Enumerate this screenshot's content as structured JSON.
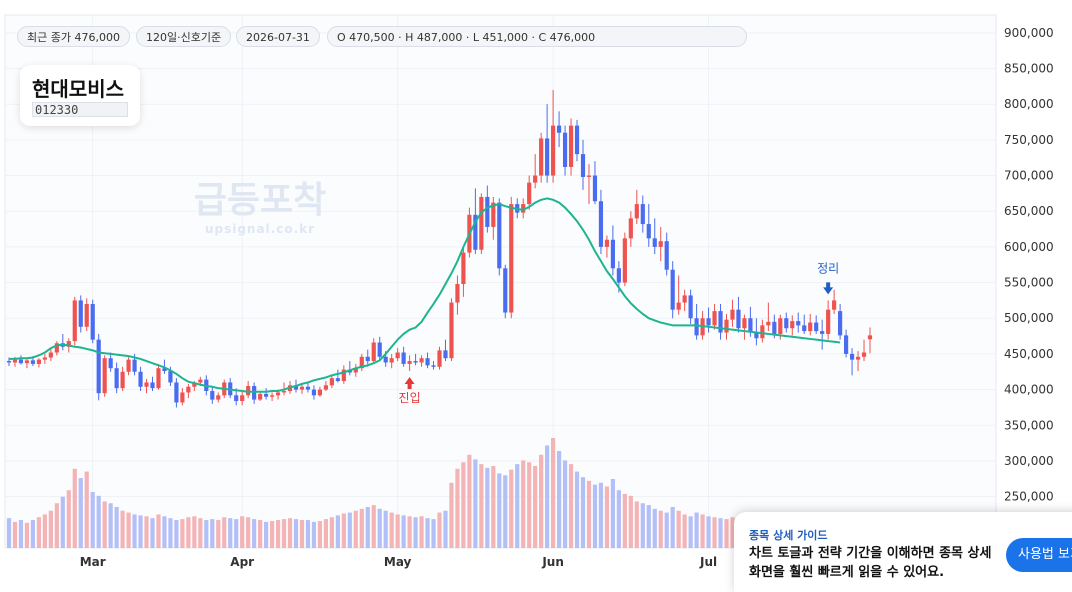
{
  "header": {
    "last_close": "최근 종가 476,000",
    "period": "120일·신호기준",
    "date": "2026-07-31",
    "ohlc": "O 470,500 · H 487,000 · L 451,000 · C 476,000"
  },
  "stock": {
    "name": "현대모비스",
    "code": "012330"
  },
  "watermark": {
    "title": "급등포착",
    "url": "upsignal.co.kr"
  },
  "signals": {
    "entry": "진입",
    "exit": "정리"
  },
  "guide": {
    "title": "종목 상세 가이드",
    "desc": "차트 토글과 전략 기간을 이해하면 종목 상세 화면을 훨씬 빠르게 읽을 수 있어요.",
    "button": "사용법 보기"
  },
  "colors": {
    "up": "#ef5350",
    "down": "#4a6cf0",
    "ma": "#1db58f",
    "vol_up": "#f4b3b5",
    "vol_down": "#b3bff7",
    "entry": "#e53935",
    "exit": "#1f5fbf"
  },
  "chart_data": {
    "type": "candlestick",
    "y_ticks": [
      "900,000",
      "850,000",
      "800,000",
      "750,000",
      "700,000",
      "650,000",
      "600,000",
      "550,000",
      "500,000",
      "450,000",
      "400,000",
      "350,000",
      "300,000",
      "250,000"
    ],
    "ylim": [
      178000,
      925000
    ],
    "x_labels": [
      {
        "label": "Mar",
        "idx": 14
      },
      {
        "label": "Apr",
        "idx": 39
      },
      {
        "label": "May",
        "idx": 65
      },
      {
        "label": "Jun",
        "idx": 91
      },
      {
        "label": "Jul",
        "idx": 117
      }
    ],
    "entry_idx": 67,
    "exit_idx": 137,
    "candles": [
      [
        440000,
        445000,
        433000,
        438000,
        32
      ],
      [
        438000,
        446000,
        432000,
        442000,
        28
      ],
      [
        442000,
        448000,
        435000,
        437000,
        30
      ],
      [
        437000,
        444000,
        430000,
        441000,
        27
      ],
      [
        441000,
        447000,
        433000,
        436000,
        30
      ],
      [
        436000,
        444000,
        431000,
        442000,
        33
      ],
      [
        442000,
        450000,
        436000,
        445000,
        36
      ],
      [
        445000,
        458000,
        440000,
        452000,
        40
      ],
      [
        452000,
        468000,
        448000,
        465000,
        48
      ],
      [
        465000,
        478000,
        455000,
        460000,
        55
      ],
      [
        460000,
        472000,
        452000,
        468000,
        62
      ],
      [
        468000,
        530000,
        462000,
        525000,
        85
      ],
      [
        525000,
        532000,
        480000,
        488000,
        75
      ],
      [
        488000,
        528000,
        482000,
        520000,
        82
      ],
      [
        520000,
        526000,
        465000,
        470000,
        60
      ],
      [
        470000,
        478000,
        385000,
        395000,
        56
      ],
      [
        395000,
        448000,
        390000,
        444000,
        50
      ],
      [
        444000,
        452000,
        425000,
        430000,
        48
      ],
      [
        430000,
        438000,
        395000,
        402000,
        44
      ],
      [
        402000,
        432000,
        398000,
        425000,
        40
      ],
      [
        425000,
        448000,
        420000,
        442000,
        38
      ],
      [
        442000,
        450000,
        420000,
        425000,
        36
      ],
      [
        425000,
        432000,
        398000,
        404000,
        35
      ],
      [
        404000,
        415000,
        395000,
        410000,
        34
      ],
      [
        410000,
        418000,
        398000,
        402000,
        32
      ],
      [
        402000,
        436000,
        400000,
        430000,
        36
      ],
      [
        430000,
        442000,
        422000,
        426000,
        34
      ],
      [
        426000,
        432000,
        405000,
        410000,
        32
      ],
      [
        410000,
        416000,
        375000,
        382000,
        30
      ],
      [
        382000,
        402000,
        378000,
        396000,
        31
      ],
      [
        396000,
        408000,
        388000,
        404000,
        33
      ],
      [
        404000,
        412000,
        398000,
        410000,
        34
      ],
      [
        410000,
        418000,
        405000,
        414000,
        32
      ],
      [
        414000,
        420000,
        392000,
        398000,
        30
      ],
      [
        398000,
        404000,
        380000,
        386000,
        31
      ],
      [
        386000,
        396000,
        382000,
        392000,
        30
      ],
      [
        392000,
        414000,
        388000,
        410000,
        33
      ],
      [
        410000,
        416000,
        388000,
        392000,
        32
      ],
      [
        392000,
        402000,
        378000,
        384000,
        31
      ],
      [
        384000,
        398000,
        378000,
        392000,
        34
      ],
      [
        392000,
        412000,
        388000,
        405000,
        33
      ],
      [
        405000,
        410000,
        380000,
        386000,
        31
      ],
      [
        386000,
        398000,
        384000,
        394000,
        30
      ],
      [
        394000,
        402000,
        386000,
        390000,
        28
      ],
      [
        390000,
        396000,
        384000,
        392000,
        29
      ],
      [
        392000,
        400000,
        386000,
        396000,
        30
      ],
      [
        396000,
        410000,
        392000,
        398000,
        31
      ],
      [
        398000,
        412000,
        394000,
        406000,
        32
      ],
      [
        406000,
        414000,
        396000,
        400000,
        31
      ],
      [
        400000,
        408000,
        394000,
        404000,
        30
      ],
      [
        404000,
        410000,
        396000,
        400000,
        30
      ],
      [
        400000,
        406000,
        386000,
        392000,
        28
      ],
      [
        392000,
        404000,
        390000,
        400000,
        29
      ],
      [
        400000,
        412000,
        398000,
        406000,
        31
      ],
      [
        406000,
        420000,
        402000,
        416000,
        33
      ],
      [
        416000,
        428000,
        410000,
        412000,
        35
      ],
      [
        412000,
        434000,
        408000,
        428000,
        37
      ],
      [
        428000,
        440000,
        420000,
        424000,
        38
      ],
      [
        424000,
        436000,
        418000,
        430000,
        40
      ],
      [
        430000,
        450000,
        426000,
        446000,
        42
      ],
      [
        446000,
        456000,
        432000,
        440000,
        44
      ],
      [
        440000,
        472000,
        436000,
        466000,
        46
      ],
      [
        466000,
        474000,
        440000,
        446000,
        42
      ],
      [
        446000,
        454000,
        432000,
        438000,
        40
      ],
      [
        438000,
        450000,
        430000,
        444000,
        38
      ],
      [
        444000,
        458000,
        440000,
        452000,
        36
      ],
      [
        452000,
        460000,
        432000,
        436000,
        35
      ],
      [
        436000,
        448000,
        426000,
        440000,
        34
      ],
      [
        440000,
        450000,
        434000,
        438000,
        33
      ],
      [
        438000,
        448000,
        432000,
        444000,
        34
      ],
      [
        444000,
        452000,
        430000,
        434000,
        32
      ],
      [
        434000,
        440000,
        428000,
        432000,
        31
      ],
      [
        432000,
        460000,
        428000,
        455000,
        38
      ],
      [
        455000,
        470000,
        440000,
        444000,
        40
      ],
      [
        444000,
        528000,
        440000,
        522000,
        70
      ],
      [
        522000,
        560000,
        505000,
        548000,
        85
      ],
      [
        548000,
        600000,
        530000,
        592000,
        92
      ],
      [
        592000,
        655000,
        585000,
        645000,
        100
      ],
      [
        645000,
        682000,
        590000,
        596000,
        95
      ],
      [
        596000,
        675000,
        590000,
        670000,
        90
      ],
      [
        670000,
        686000,
        620000,
        628000,
        86
      ],
      [
        628000,
        670000,
        610000,
        662000,
        88
      ],
      [
        662000,
        668000,
        560000,
        570000,
        80
      ],
      [
        570000,
        575000,
        500000,
        508000,
        78
      ],
      [
        508000,
        670000,
        500000,
        660000,
        84
      ],
      [
        660000,
        668000,
        640000,
        648000,
        90
      ],
      [
        648000,
        668000,
        640000,
        660000,
        94
      ],
      [
        660000,
        700000,
        652000,
        690000,
        92
      ],
      [
        690000,
        730000,
        682000,
        700000,
        88
      ],
      [
        700000,
        760000,
        690000,
        752000,
        100
      ],
      [
        752000,
        800000,
        690000,
        700000,
        110
      ],
      [
        700000,
        820000,
        690000,
        770000,
        118
      ],
      [
        770000,
        790000,
        740000,
        760000,
        104
      ],
      [
        760000,
        770000,
        700000,
        712000,
        94
      ],
      [
        712000,
        780000,
        700000,
        770000,
        90
      ],
      [
        770000,
        778000,
        720000,
        730000,
        82
      ],
      [
        730000,
        750000,
        680000,
        698000,
        76
      ],
      [
        698000,
        716000,
        660000,
        700000,
        72
      ],
      [
        700000,
        720000,
        660000,
        664000,
        68
      ],
      [
        664000,
        680000,
        590000,
        600000,
        70
      ],
      [
        600000,
        616000,
        585000,
        610000,
        66
      ],
      [
        610000,
        630000,
        560000,
        570000,
        74
      ],
      [
        570000,
        580000,
        536000,
        550000,
        62
      ],
      [
        550000,
        620000,
        545000,
        612000,
        58
      ],
      [
        612000,
        650000,
        600000,
        640000,
        56
      ],
      [
        640000,
        680000,
        632000,
        660000,
        50
      ],
      [
        660000,
        672000,
        620000,
        632000,
        48
      ],
      [
        632000,
        660000,
        600000,
        612000,
        46
      ],
      [
        612000,
        640000,
        590000,
        600000,
        42
      ],
      [
        600000,
        628000,
        580000,
        608000,
        40
      ],
      [
        608000,
        620000,
        560000,
        568000,
        38
      ],
      [
        568000,
        580000,
        500000,
        512000,
        44
      ],
      [
        512000,
        560000,
        505000,
        522000,
        40
      ],
      [
        522000,
        540000,
        510000,
        532000,
        36
      ],
      [
        532000,
        540000,
        492000,
        500000,
        34
      ],
      [
        500000,
        520000,
        470000,
        476000,
        38
      ],
      [
        476000,
        510000,
        470000,
        500000,
        36
      ],
      [
        500000,
        515000,
        480000,
        490000,
        34
      ],
      [
        490000,
        520000,
        484000,
        510000,
        33
      ],
      [
        510000,
        520000,
        470000,
        480000,
        32
      ],
      [
        480000,
        506000,
        470000,
        498000,
        31
      ],
      [
        498000,
        526000,
        488000,
        512000,
        33
      ],
      [
        512000,
        530000,
        480000,
        486000,
        32
      ],
      [
        486000,
        505000,
        470000,
        500000,
        31
      ],
      [
        500000,
        516000,
        474000,
        480000,
        30
      ],
      [
        480000,
        500000,
        462000,
        472000,
        31
      ],
      [
        472000,
        498000,
        466000,
        490000,
        30
      ],
      [
        490000,
        522000,
        482000,
        495000,
        32
      ],
      [
        495000,
        505000,
        472000,
        478000,
        31
      ],
      [
        478000,
        505000,
        470000,
        500000,
        30
      ],
      [
        500000,
        508000,
        480000,
        486000,
        29
      ],
      [
        486000,
        504000,
        476000,
        496000,
        30
      ],
      [
        496000,
        508000,
        480000,
        490000,
        30
      ],
      [
        490000,
        505000,
        478000,
        482000,
        29
      ],
      [
        482000,
        506000,
        476000,
        494000,
        30
      ],
      [
        494000,
        504000,
        478000,
        482000,
        28
      ],
      [
        482000,
        498000,
        456000,
        478000,
        30
      ],
      [
        478000,
        525000,
        470000,
        512000,
        35
      ],
      [
        512000,
        540000,
        506000,
        525000,
        38
      ],
      [
        510000,
        520000,
        470000,
        476000,
        36
      ],
      [
        476000,
        484000,
        445000,
        450000,
        34
      ],
      [
        450000,
        458000,
        420000,
        442000,
        31
      ],
      [
        442000,
        454000,
        426000,
        446000,
        30
      ],
      [
        446000,
        470000,
        440000,
        452000,
        29
      ],
      [
        470500,
        487000,
        451000,
        476000,
        29
      ]
    ],
    "ma": [
      443,
      443,
      444,
      444,
      445,
      448,
      452,
      458,
      462,
      463,
      462,
      460,
      459,
      457,
      455,
      452,
      451,
      450,
      449,
      448,
      447,
      445,
      443,
      440,
      437,
      434,
      431,
      427,
      422,
      416,
      411,
      409,
      407,
      405,
      404,
      402,
      401,
      400,
      399,
      398,
      397,
      397,
      397,
      397,
      398,
      398,
      400,
      403,
      405,
      408,
      410,
      413,
      415,
      417,
      420,
      422,
      424,
      427,
      430,
      432,
      434,
      437,
      441,
      450,
      460,
      470,
      478,
      484,
      487,
      495,
      508,
      520,
      533,
      548,
      563,
      580,
      600,
      618,
      635,
      648,
      655,
      658,
      660,
      657,
      655,
      653,
      652,
      656,
      662,
      666,
      668,
      666,
      662,
      655,
      646,
      636,
      624,
      610,
      594,
      580,
      566,
      555,
      543,
      531,
      521,
      513,
      506,
      500,
      497,
      494,
      492,
      490,
      490,
      490,
      490,
      490,
      489,
      488,
      487,
      486,
      485,
      484,
      483,
      482,
      481,
      480,
      479,
      478,
      477,
      476,
      475,
      474,
      473,
      472,
      471,
      470,
      469,
      468,
      467,
      466
    ]
  }
}
